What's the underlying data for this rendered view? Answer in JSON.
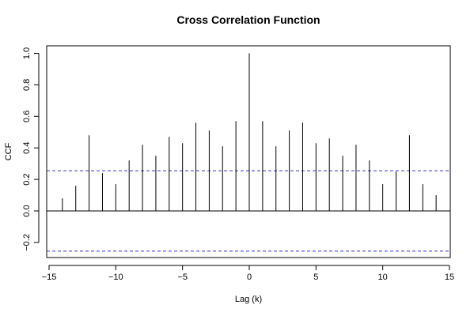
{
  "chart_data": {
    "type": "bar",
    "title": "Cross Correlation Function",
    "xlabel": "Lag (k)",
    "ylabel": "CCF",
    "xlim": [
      -15,
      15
    ],
    "ylim": [
      -0.3,
      1.05
    ],
    "x_ticks": [
      -15,
      -10,
      -5,
      0,
      5,
      10,
      15
    ],
    "x_tick_labels": [
      "−15",
      "−10",
      "−5",
      "0",
      "5",
      "10",
      "15"
    ],
    "y_ticks": [
      -0.2,
      0.0,
      0.2,
      0.4,
      0.6,
      0.8,
      1.0
    ],
    "y_tick_labels": [
      "−0.2",
      "0.0",
      "0.2",
      "0.4",
      "0.6",
      "0.8",
      "1.0"
    ],
    "confidence_bound": 0.255,
    "colors": {
      "spikes": "#000000",
      "confidence": "#3333cc",
      "zero_line": "#000000"
    },
    "series": [
      {
        "lags": [
          -14,
          -13,
          -12,
          -11,
          -10,
          -9,
          -8,
          -7,
          -6,
          -5,
          -4,
          -3,
          -2,
          -1,
          0,
          1,
          2,
          3,
          4,
          5,
          6,
          7,
          8,
          9,
          10,
          11,
          12,
          13,
          14
        ],
        "values": [
          0.08,
          0.16,
          0.48,
          0.24,
          0.17,
          0.32,
          0.42,
          0.35,
          0.47,
          0.43,
          0.56,
          0.51,
          0.41,
          0.57,
          1.0,
          0.57,
          0.41,
          0.51,
          0.56,
          0.43,
          0.46,
          0.35,
          0.42,
          0.32,
          0.17,
          0.25,
          0.48,
          0.17,
          0.1
        ]
      }
    ]
  }
}
